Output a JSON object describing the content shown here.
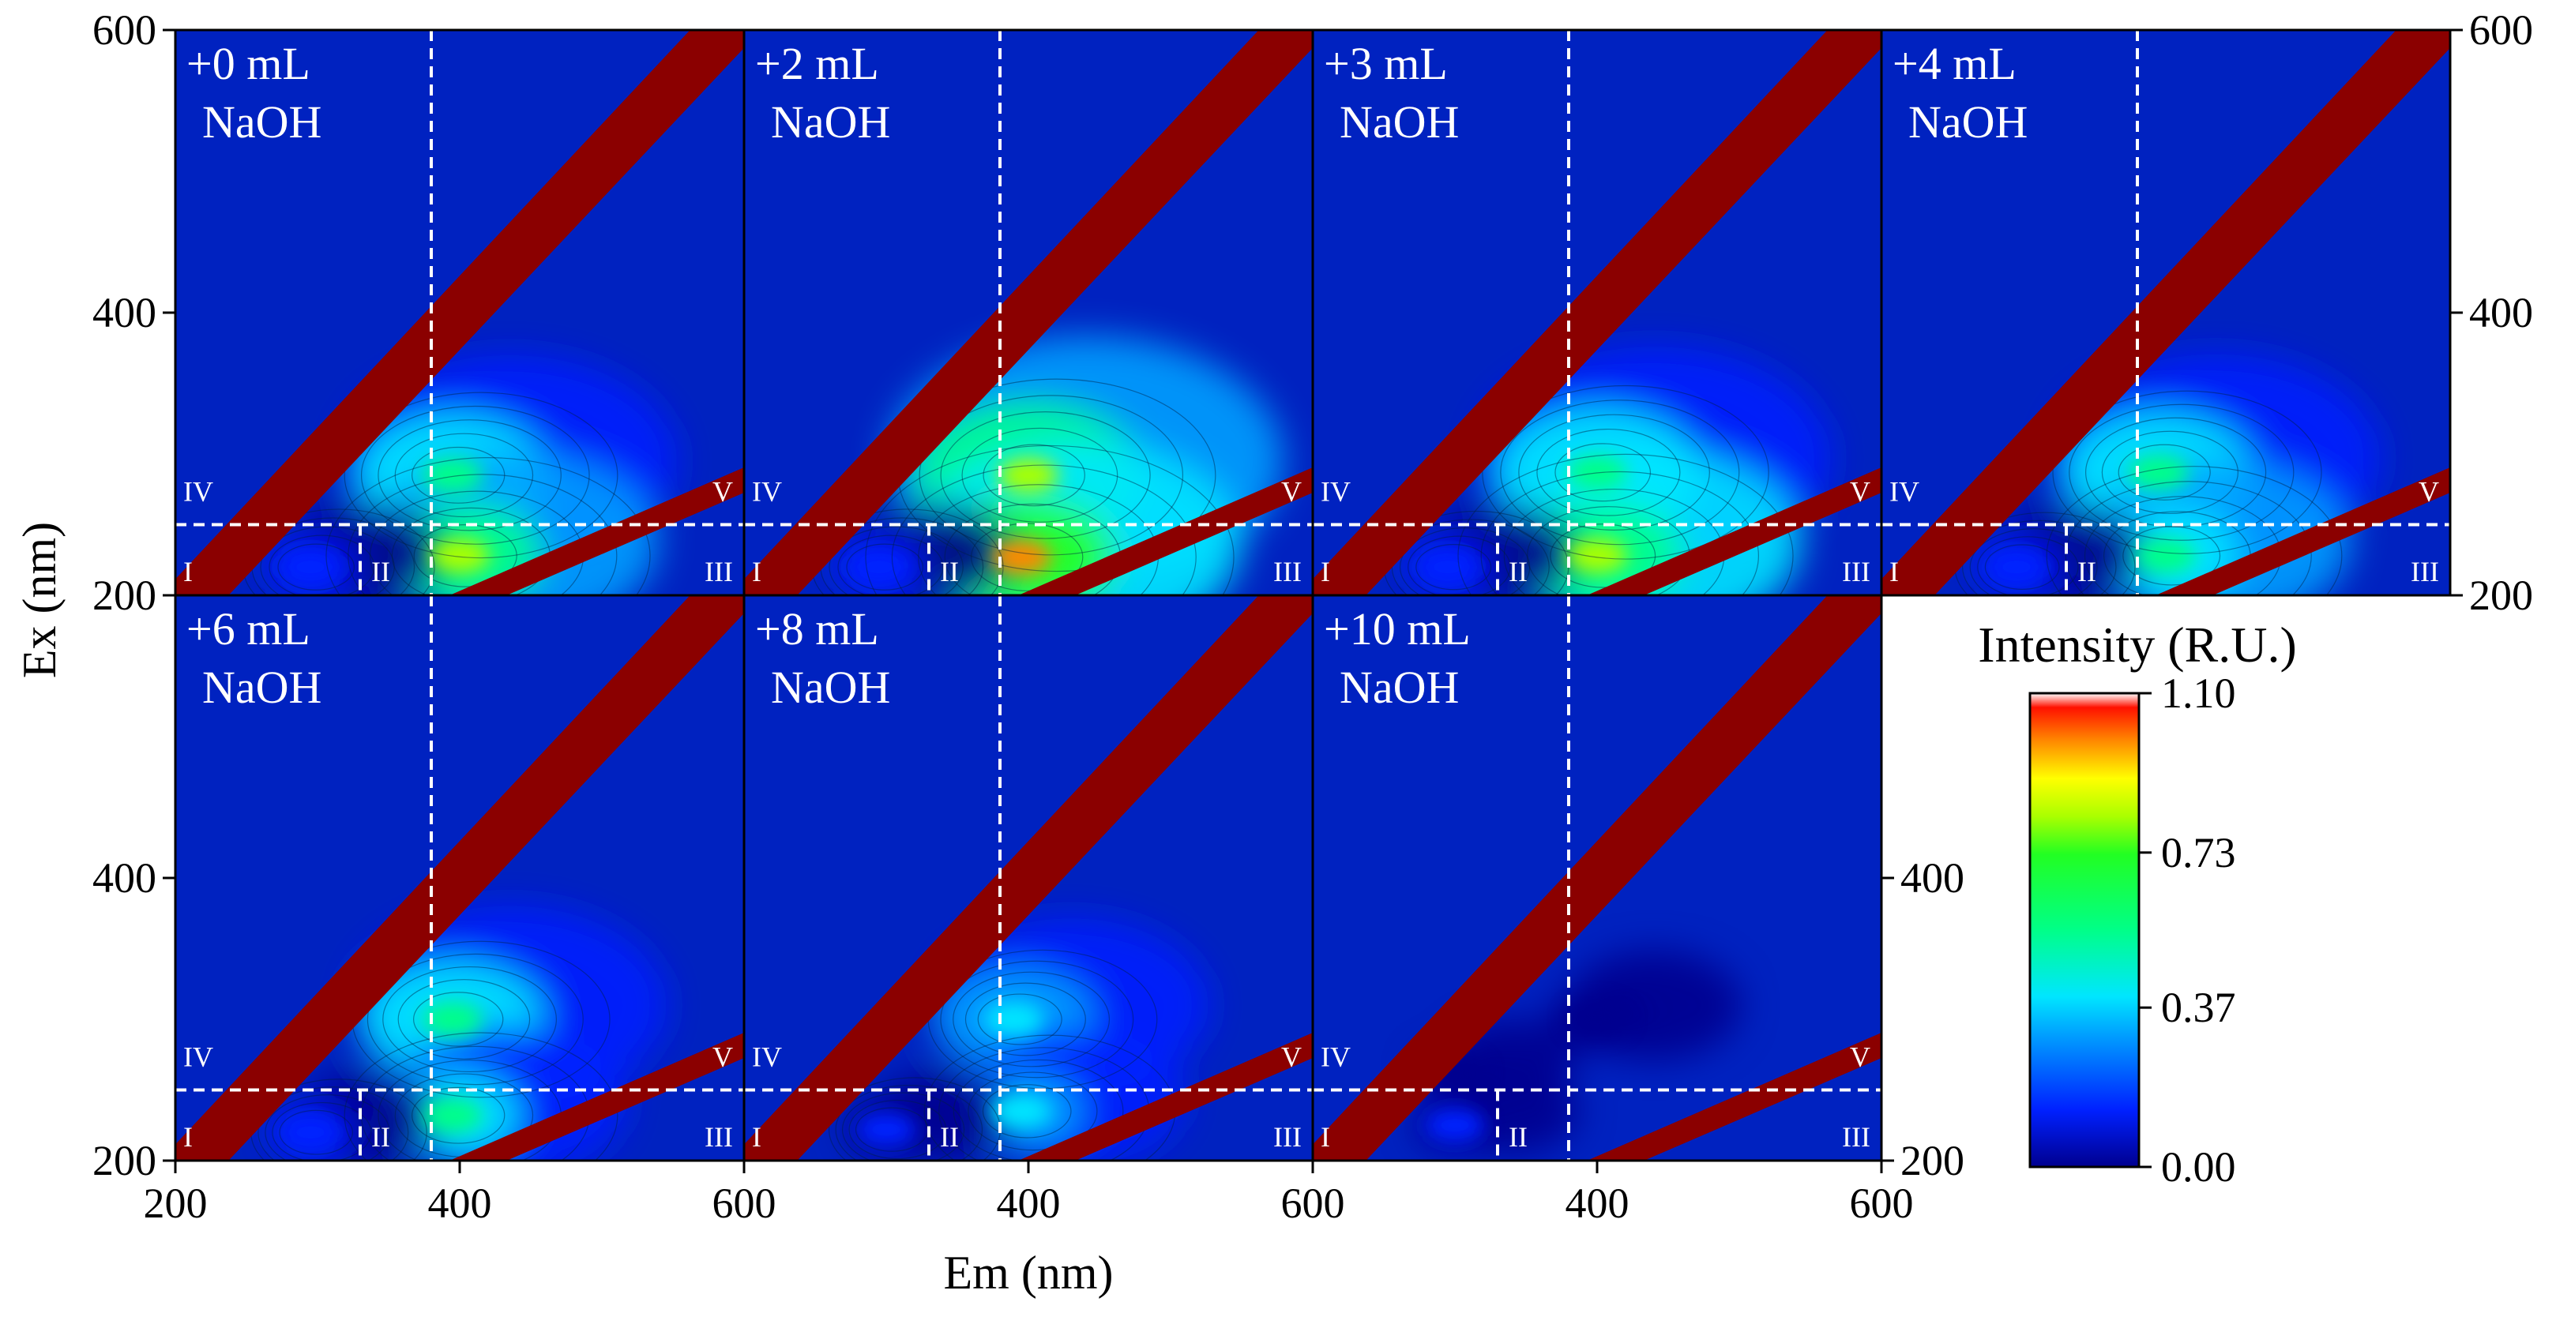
{
  "chart_data": {
    "type": "heatmap",
    "description_kind": "EEM fluorescence contour maps",
    "xlabel": "Em (nm)",
    "ylabel": "Ex (nm)",
    "xlim": [
      200,
      600
    ],
    "ylim": [
      200,
      600
    ],
    "x_ticks": [
      "200",
      "400",
      "600"
    ],
    "y_ticks": [
      "200",
      "400",
      "600"
    ],
    "region_boundaries": {
      "ex_split": 250,
      "em_split_low": 330,
      "em_split_high": 380
    },
    "region_labels": [
      "I",
      "II",
      "III",
      "IV",
      "V"
    ],
    "panels": [
      {
        "line1": "+0 mL",
        "line2": "NaOH",
        "peaks": [
          {
            "em": 395,
            "ex": 285,
            "intensity": 0.62
          },
          {
            "em": 400,
            "ex": 228,
            "intensity": 0.85
          },
          {
            "em": 295,
            "ex": 220,
            "intensity": 0.25
          }
        ]
      },
      {
        "line1": "+2 mL",
        "line2": "NaOH",
        "peaks": [
          {
            "em": 400,
            "ex": 285,
            "intensity": 0.82
          },
          {
            "em": 395,
            "ex": 227,
            "intensity": 1.05
          },
          {
            "em": 295,
            "ex": 220,
            "intensity": 0.25
          }
        ]
      },
      {
        "line1": "+3 mL",
        "line2": "NaOH",
        "peaks": [
          {
            "em": 400,
            "ex": 287,
            "intensity": 0.68
          },
          {
            "em": 400,
            "ex": 228,
            "intensity": 0.9
          },
          {
            "em": 295,
            "ex": 220,
            "intensity": 0.22
          }
        ]
      },
      {
        "line1": "+4 mL",
        "line2": "NaOH",
        "peaks": [
          {
            "em": 395,
            "ex": 287,
            "intensity": 0.6
          },
          {
            "em": 400,
            "ex": 228,
            "intensity": 0.72
          },
          {
            "em": 295,
            "ex": 220,
            "intensity": 0.2
          }
        ]
      },
      {
        "line1": "+6 mL",
        "line2": "NaOH",
        "peaks": [
          {
            "em": 395,
            "ex": 300,
            "intensity": 0.55
          },
          {
            "em": 395,
            "ex": 232,
            "intensity": 0.62
          },
          {
            "em": 295,
            "ex": 220,
            "intensity": 0.18
          }
        ]
      },
      {
        "line1": "+8 mL",
        "line2": "NaOH",
        "peaks": [
          {
            "em": 390,
            "ex": 300,
            "intensity": 0.42
          },
          {
            "em": 395,
            "ex": 235,
            "intensity": 0.52
          },
          {
            "em": 300,
            "ex": 222,
            "intensity": 0.16
          }
        ]
      },
      {
        "line1": "+10 mL",
        "line2": "NaOH",
        "peaks": [
          {
            "em": 400,
            "ex": 300,
            "intensity": 0.08
          },
          {
            "em": 300,
            "ex": 225,
            "intensity": 0.14
          },
          {
            "em": 300,
            "ex": 262,
            "intensity": 0.1
          }
        ]
      }
    ],
    "colorbar": {
      "title": "Intensity (R.U.)",
      "ticks": [
        "1.10",
        "0.73",
        "0.37",
        "0.00"
      ],
      "range": [
        0,
        1.1
      ],
      "colors": [
        "#00008f",
        "#0033ff",
        "#00ccff",
        "#00ff66",
        "#66ff00",
        "#ffff00",
        "#ff6600",
        "#ff0000",
        "#ffffff"
      ]
    },
    "scatter_band_color": "#8b0000",
    "background_color": "#0022c0"
  }
}
